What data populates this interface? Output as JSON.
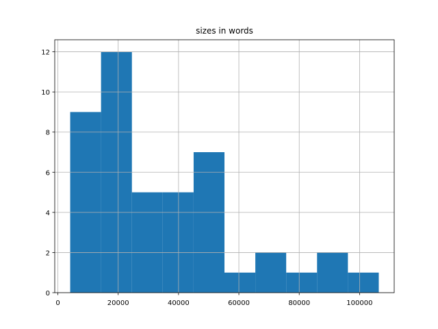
{
  "chart_data": {
    "type": "histogram",
    "title": "sizes in words",
    "bins": [
      4090,
      14317,
      24545,
      34772,
      45000,
      55227,
      65454,
      75682,
      85909,
      96136,
      106364
    ],
    "values": [
      9,
      12,
      5,
      5,
      7,
      1,
      2,
      1,
      2,
      1
    ],
    "color": "#1f77b4",
    "xlim": [
      -1024,
      111478
    ],
    "xticks": [
      0,
      20000,
      40000,
      60000,
      80000,
      100000
    ],
    "ylim": [
      0,
      12.6
    ],
    "yticks": [
      0,
      2,
      4,
      6,
      8,
      10,
      12
    ],
    "grid": true
  }
}
